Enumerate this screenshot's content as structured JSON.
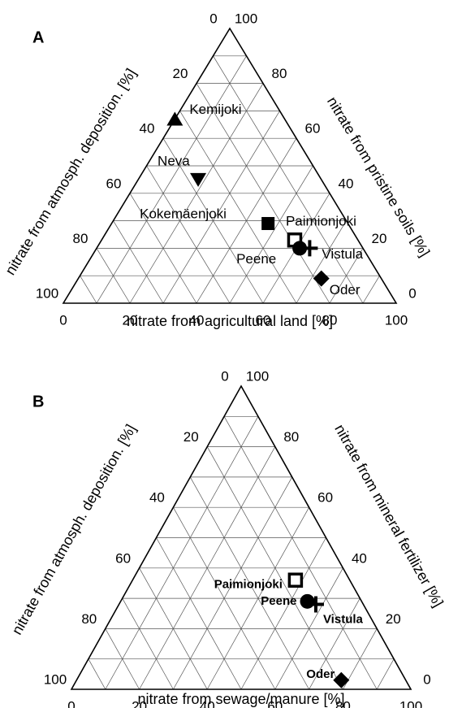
{
  "chart_data": [
    {
      "type": "ternary",
      "panel": "A",
      "bottom_label": "nitrate from agricultural land [%]",
      "left_label": "nitrate from atmosph. deposition. [%]",
      "right_label": "nitrate from pristine soils [%]",
      "ticks": [
        0,
        20,
        40,
        60,
        80,
        100
      ],
      "grid": [
        10,
        20,
        30,
        40,
        50,
        60,
        70,
        80,
        90
      ],
      "color": "#000000",
      "series": [
        {
          "name": "Kemijoki",
          "marker": "triangle-up",
          "values": [
            0,
            67
          ]
        },
        {
          "name": "Neva",
          "marker": "triangle-down",
          "values": [
            18,
            45
          ]
        },
        {
          "name": "Kokemäenjoki",
          "marker": "square",
          "values": [
            47,
            29
          ]
        },
        {
          "name": "Paimionjoki",
          "marker": "open-square",
          "values": [
            58,
            23
          ]
        },
        {
          "name": "Peene",
          "marker": "circle",
          "values": [
            61,
            20
          ]
        },
        {
          "name": "Vistula",
          "marker": "plus",
          "values": [
            64,
            20
          ]
        },
        {
          "name": "Oder",
          "marker": "diamond",
          "values": [
            73,
            9
          ]
        }
      ]
    },
    {
      "type": "ternary",
      "panel": "B",
      "bottom_label": "nitrate from sewage/manure [%]",
      "left_label": "nitrate from atmosph. deposition. [%]",
      "right_label": "nitrate from mineral fertilizer [%]",
      "ticks": [
        0,
        20,
        40,
        60,
        80,
        100
      ],
      "grid": [
        10,
        20,
        30,
        40,
        50,
        60,
        70,
        80,
        90
      ],
      "color": "#000000",
      "series": [
        {
          "name": "Paimionjoki",
          "marker": "open-square",
          "values": [
            48,
            36
          ]
        },
        {
          "name": "Peene",
          "marker": "circle",
          "values": [
            55,
            29
          ]
        },
        {
          "name": "Vistula",
          "marker": "plus",
          "values": [
            58,
            28
          ]
        },
        {
          "name": "Oder",
          "marker": "diamond",
          "values": [
            78,
            3
          ]
        }
      ]
    }
  ]
}
